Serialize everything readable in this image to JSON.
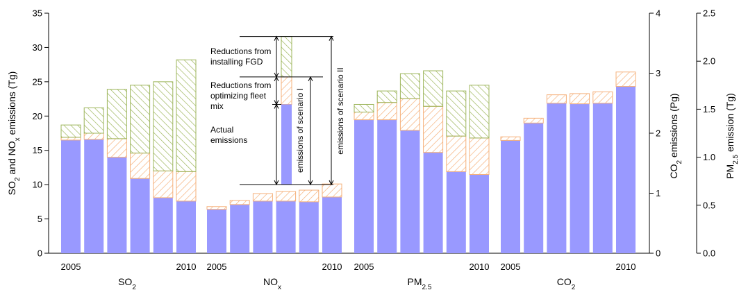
{
  "colors": {
    "actual": "#9999ff",
    "fleet_hatch": "#f5b07a",
    "fgd_hatch": "#9cb55a",
    "axis": "#000000"
  },
  "chart_data": {
    "type": "bar",
    "stacked": true,
    "axes": {
      "left": {
        "label": "SO2 and NOx emissions (Tg)",
        "ylim": [
          0,
          35
        ],
        "ticks": [
          0,
          5,
          10,
          15,
          20,
          25,
          30,
          35
        ]
      },
      "right1": {
        "label": "CO2 emissions (Pg)",
        "ylim": [
          0,
          4
        ],
        "ticks": [
          0,
          1,
          2,
          3,
          4
        ]
      },
      "right2": {
        "label": "PM2.5 emission (Tg)",
        "ylim": [
          0,
          2.5
        ],
        "ticks": [
          "0.0",
          "0.5",
          "1.0",
          "1.5",
          "2.0",
          "2.5"
        ]
      }
    },
    "groups": [
      {
        "name": "SO2",
        "axis": "left",
        "x_labels": [
          "2005",
          "",
          "",
          "",
          "",
          "2010"
        ],
        "actual": [
          16.5,
          16.6,
          14.0,
          10.9,
          8.1,
          7.6
        ],
        "fleet": [
          0.4,
          0.9,
          2.7,
          3.7,
          3.9,
          4.3
        ],
        "fgd": [
          1.8,
          3.7,
          7.2,
          9.9,
          13.0,
          16.3
        ]
      },
      {
        "name": "NOx",
        "axis": "left",
        "x_labels": [
          "2005",
          "",
          "",
          "",
          "",
          "2010"
        ],
        "actual": [
          6.4,
          7.1,
          7.6,
          7.6,
          7.5,
          8.2
        ],
        "fleet": [
          0.4,
          0.6,
          1.1,
          1.4,
          1.7,
          1.9
        ],
        "fgd": [
          0,
          0,
          0,
          0,
          0,
          0
        ]
      },
      {
        "name": "PM2.5",
        "axis": "right2",
        "x_labels": [
          "2005",
          "",
          "",
          "",
          "",
          "2010"
        ],
        "actual": [
          1.39,
          1.39,
          1.28,
          1.05,
          0.85,
          0.82
        ],
        "fleet": [
          0.08,
          0.18,
          0.33,
          0.48,
          0.37,
          0.38
        ],
        "fgd": [
          0.08,
          0.12,
          0.26,
          0.37,
          0.47,
          0.55
        ]
      },
      {
        "name": "CO2",
        "axis": "right1",
        "x_labels": [
          "2005",
          "",
          "",
          "",
          "",
          "2010"
        ],
        "actual": [
          1.88,
          2.17,
          2.5,
          2.49,
          2.5,
          2.78
        ],
        "fleet": [
          0.06,
          0.08,
          0.14,
          0.17,
          0.19,
          0.24
        ],
        "fgd": [
          0,
          0,
          0,
          0,
          0,
          0
        ]
      }
    ],
    "legend": {
      "items": [
        {
          "key": "fgd",
          "label_lines": [
            "Reductions from",
            "installing FGD"
          ]
        },
        {
          "key": "fleet",
          "label_lines": [
            "Reductions from",
            "optimizing fleet",
            "mix"
          ]
        },
        {
          "key": "actual",
          "label_lines": [
            "Actual",
            "emissions"
          ]
        }
      ],
      "scenario_labels": [
        "emissions of scenario I",
        "emissions of scenario II"
      ],
      "values": {
        "actual": 21.7,
        "fleet": 4.0,
        "fgd": 5.9
      }
    }
  }
}
